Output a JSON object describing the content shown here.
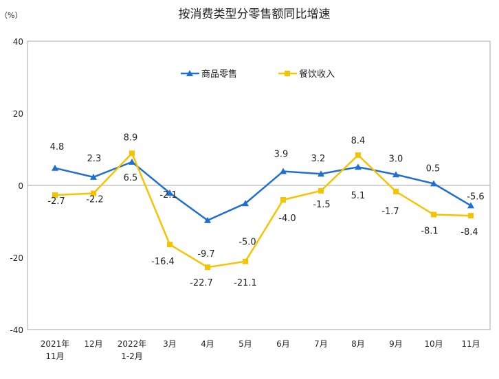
{
  "chart_data": {
    "type": "line",
    "title": "按消费类型分零售额同比增速",
    "ylabel": "（%）",
    "ylim": [
      -40,
      40
    ],
    "yticks": [
      40,
      20,
      0,
      -20,
      -40
    ],
    "grid": false,
    "legend_position": "top-center",
    "categories": [
      [
        "2021年",
        "11月"
      ],
      [
        "12月"
      ],
      [
        "2022年",
        "1-2月"
      ],
      [
        "3月"
      ],
      [
        "4月"
      ],
      [
        "5月"
      ],
      [
        "6月"
      ],
      [
        "7月"
      ],
      [
        "8月"
      ],
      [
        "9月"
      ],
      [
        "10月"
      ],
      [
        "11月"
      ]
    ],
    "series": [
      {
        "name": "商品零售",
        "color": "#1f6fd0",
        "marker": "triangle",
        "values": [
          4.8,
          2.3,
          6.5,
          -2.1,
          -9.7,
          -5.0,
          3.9,
          3.2,
          5.1,
          3.0,
          0.5,
          -5.6
        ]
      },
      {
        "name": "餐饮收入",
        "color": "#f5c400",
        "marker": "square",
        "values": [
          -2.7,
          -2.2,
          8.9,
          -16.4,
          -22.7,
          -21.1,
          -4.0,
          -1.5,
          8.4,
          -1.7,
          -8.1,
          -8.4
        ]
      }
    ]
  }
}
